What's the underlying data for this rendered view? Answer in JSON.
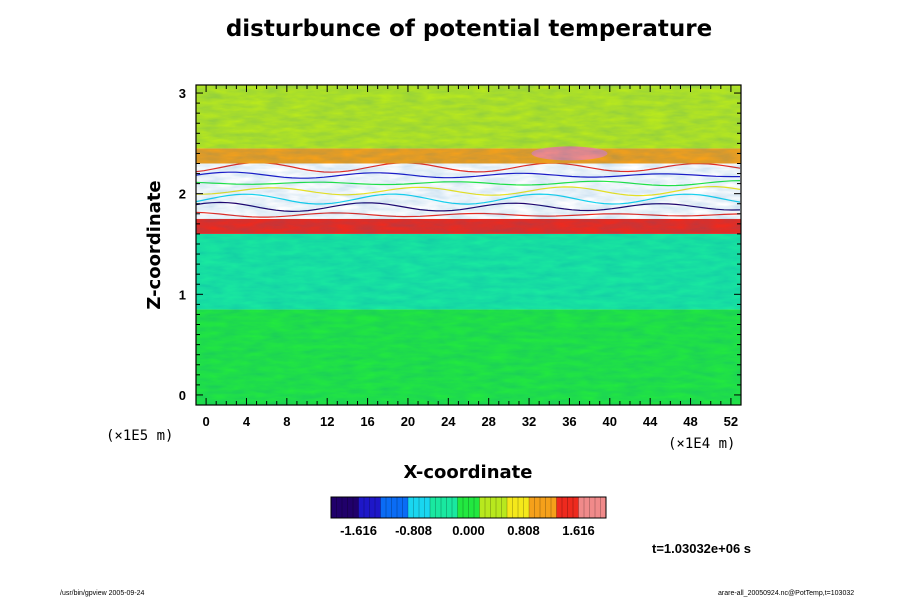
{
  "title": "disturbunce of potential temperature",
  "footer_left": "/usr/bin/gpview 2005-09-24",
  "footer_right": "arare-all_20050924.nc@PotTemp,t=103032",
  "time_label": "t=1.03032e+06 s",
  "chart_data": {
    "type": "heatmap",
    "title": "disturbunce of potential temperature",
    "xlabel": "X-coordinate",
    "ylabel": "Z-coordinate",
    "x_scale_note": "(×1E4 m)",
    "y_scale_note": "(×1E5 m)",
    "xlim": [
      -1,
      53
    ],
    "ylim": [
      -0.1,
      3.08
    ],
    "x_ticks": [
      0,
      4,
      8,
      12,
      16,
      20,
      24,
      28,
      32,
      36,
      40,
      44,
      48,
      52
    ],
    "y_ticks": [
      0,
      1,
      2,
      3
    ],
    "colorbar": {
      "range": [
        -2.02,
        2.02
      ],
      "tick_values": [
        -1.616,
        -0.808,
        0.0,
        0.808,
        1.616
      ],
      "tick_labels": [
        "-1.616",
        "-0.808",
        "0.000",
        "0.808",
        "1.616"
      ],
      "colors": [
        "#20006a",
        "#1e17c8",
        "#0a6cf5",
        "#19d6f0",
        "#19e8a0",
        "#22e840",
        "#b8e81e",
        "#f5e81a",
        "#f5a01a",
        "#ee2a1e",
        "#f08a8a"
      ]
    },
    "layers": [
      {
        "z_min": -0.1,
        "z_max": 0.85,
        "value": 0.0,
        "pattern": "mostly uniform, faint texture"
      },
      {
        "z_min": 0.85,
        "z_max": 1.6,
        "value": -0.35,
        "pattern": "banded cyan, darker blue streaks near z≈1.0 and z≈1.55"
      },
      {
        "z_min": 1.6,
        "z_max": 1.75,
        "value": 1.5,
        "pattern": "red/orange band"
      },
      {
        "z_min": 1.75,
        "z_max": 2.3,
        "value": null,
        "pattern": "white (out of range) with thin colored contours"
      },
      {
        "z_min": 2.3,
        "z_max": 2.45,
        "value": 1.2,
        "pattern": "yellow/red band, red patch near x≈36"
      },
      {
        "z_min": 2.45,
        "z_max": 3.08,
        "value": 0.35,
        "pattern": "green to yellow-green"
      }
    ]
  }
}
